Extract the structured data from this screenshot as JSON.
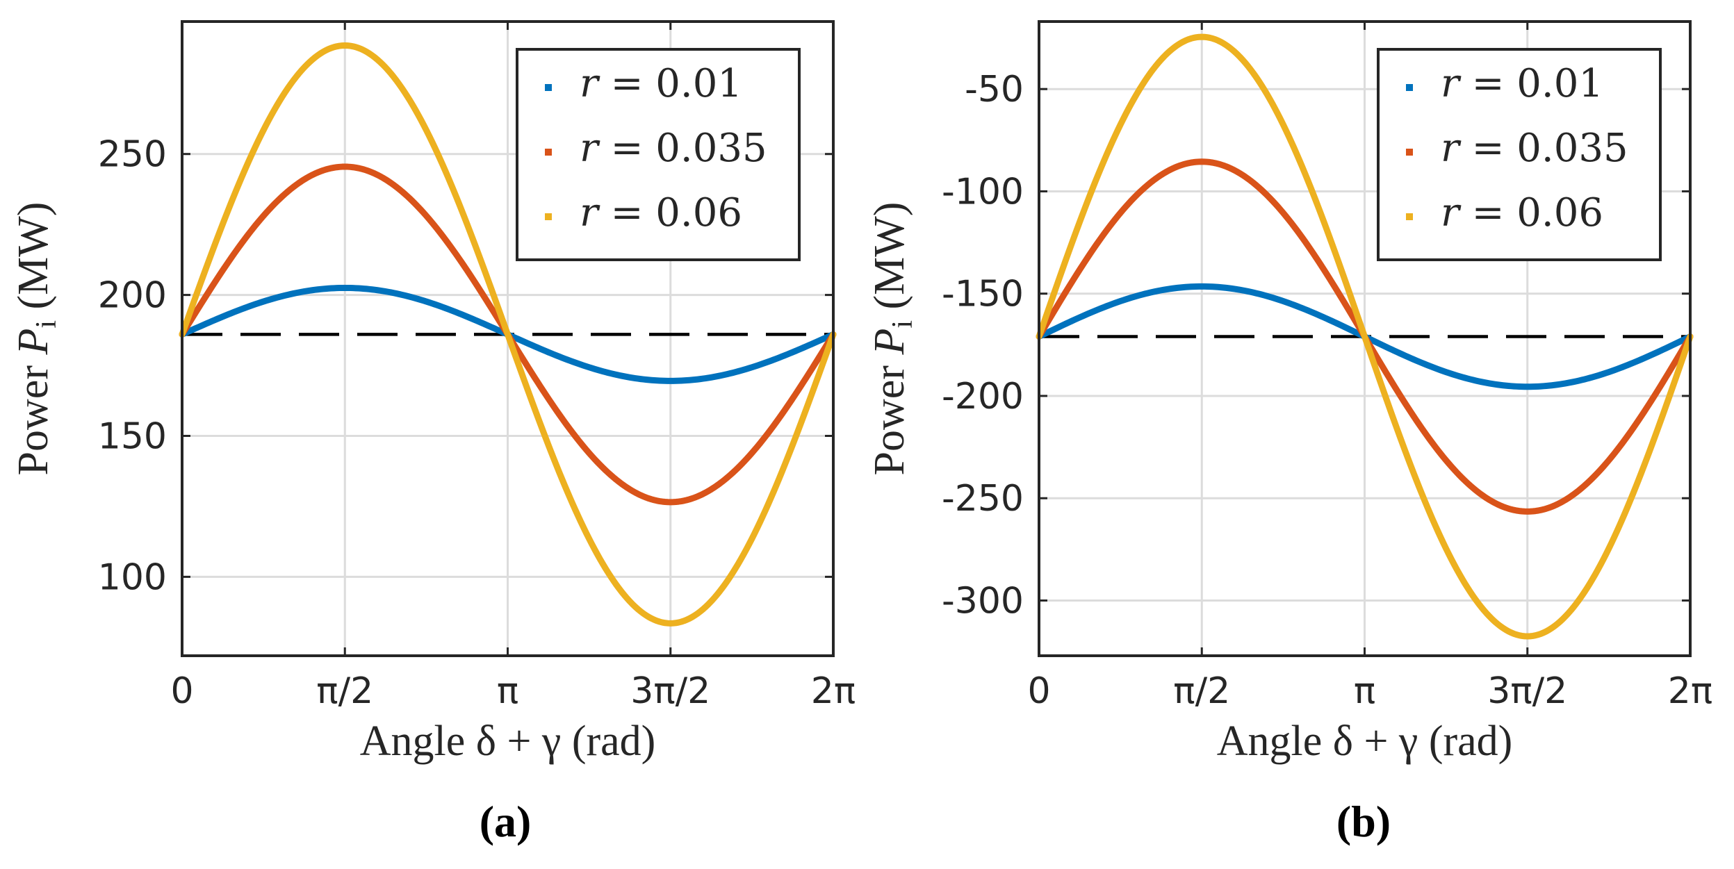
{
  "chart_data": [
    {
      "type": "line",
      "caption": "(a)",
      "xlabel": "Angle δ + γ (rad)",
      "ylabel_prefix": "Power",
      "ylabel_symbol": "P",
      "ylabel_subscript": "i",
      "ylabel_unit": "(MW)",
      "xlim": [
        0,
        6.2832
      ],
      "ylim": [
        72,
        297
      ],
      "xticks": [
        {
          "value": 0,
          "label": "0"
        },
        {
          "value": 1.5708,
          "label": "π/2"
        },
        {
          "value": 3.1416,
          "label": "π"
        },
        {
          "value": 4.7124,
          "label": "3π/2"
        },
        {
          "value": 6.2832,
          "label": "2π"
        }
      ],
      "yticks": [
        {
          "value": 100,
          "label": "100"
        },
        {
          "value": 150,
          "label": "150"
        },
        {
          "value": 200,
          "label": "200"
        },
        {
          "value": 250,
          "label": "250"
        }
      ],
      "grid": true,
      "legend_position": "top-right",
      "baseline": {
        "value": 186,
        "style": "dashed",
        "color": "#000000"
      },
      "series": [
        {
          "name": "r = 0.01",
          "r": "0.01",
          "color": "#0072BD",
          "offset": 186,
          "amplitude": 16.5
        },
        {
          "name": "r = 0.035",
          "r": "0.035",
          "color": "#D95319",
          "offset": 186,
          "amplitude": 59.5
        },
        {
          "name": "r = 0.06",
          "r": "0.06",
          "color": "#EDB120",
          "offset": 186,
          "amplitude": 102.5
        }
      ]
    },
    {
      "type": "line",
      "caption": "(b)",
      "xlabel": "Angle δ + γ (rad)",
      "ylabel_prefix": "Power",
      "ylabel_symbol": "P",
      "ylabel_subscript": "i",
      "ylabel_unit": "(MW)",
      "xlim": [
        0,
        6.2832
      ],
      "ylim": [
        -327,
        -17
      ],
      "xticks": [
        {
          "value": 0,
          "label": "0"
        },
        {
          "value": 1.5708,
          "label": "π/2"
        },
        {
          "value": 3.1416,
          "label": "π"
        },
        {
          "value": 4.7124,
          "label": "3π/2"
        },
        {
          "value": 6.2832,
          "label": "2π"
        }
      ],
      "yticks": [
        {
          "value": -300,
          "label": "-300"
        },
        {
          "value": -250,
          "label": "-250"
        },
        {
          "value": -200,
          "label": "-200"
        },
        {
          "value": -150,
          "label": "-150"
        },
        {
          "value": -100,
          "label": "-100"
        },
        {
          "value": -50,
          "label": "-50"
        }
      ],
      "grid": true,
      "legend_position": "top-right",
      "baseline": {
        "value": -171,
        "style": "dashed",
        "color": "#000000"
      },
      "series": [
        {
          "name": "r = 0.01",
          "r": "0.01",
          "color": "#0072BD",
          "offset": -171,
          "amplitude": 24.5
        },
        {
          "name": "r = 0.035",
          "r": "0.035",
          "color": "#D95319",
          "offset": -171,
          "amplitude": 85.5
        },
        {
          "name": "r = 0.06",
          "r": "0.06",
          "color": "#EDB120",
          "offset": -171,
          "amplitude": 146.5
        }
      ]
    }
  ]
}
